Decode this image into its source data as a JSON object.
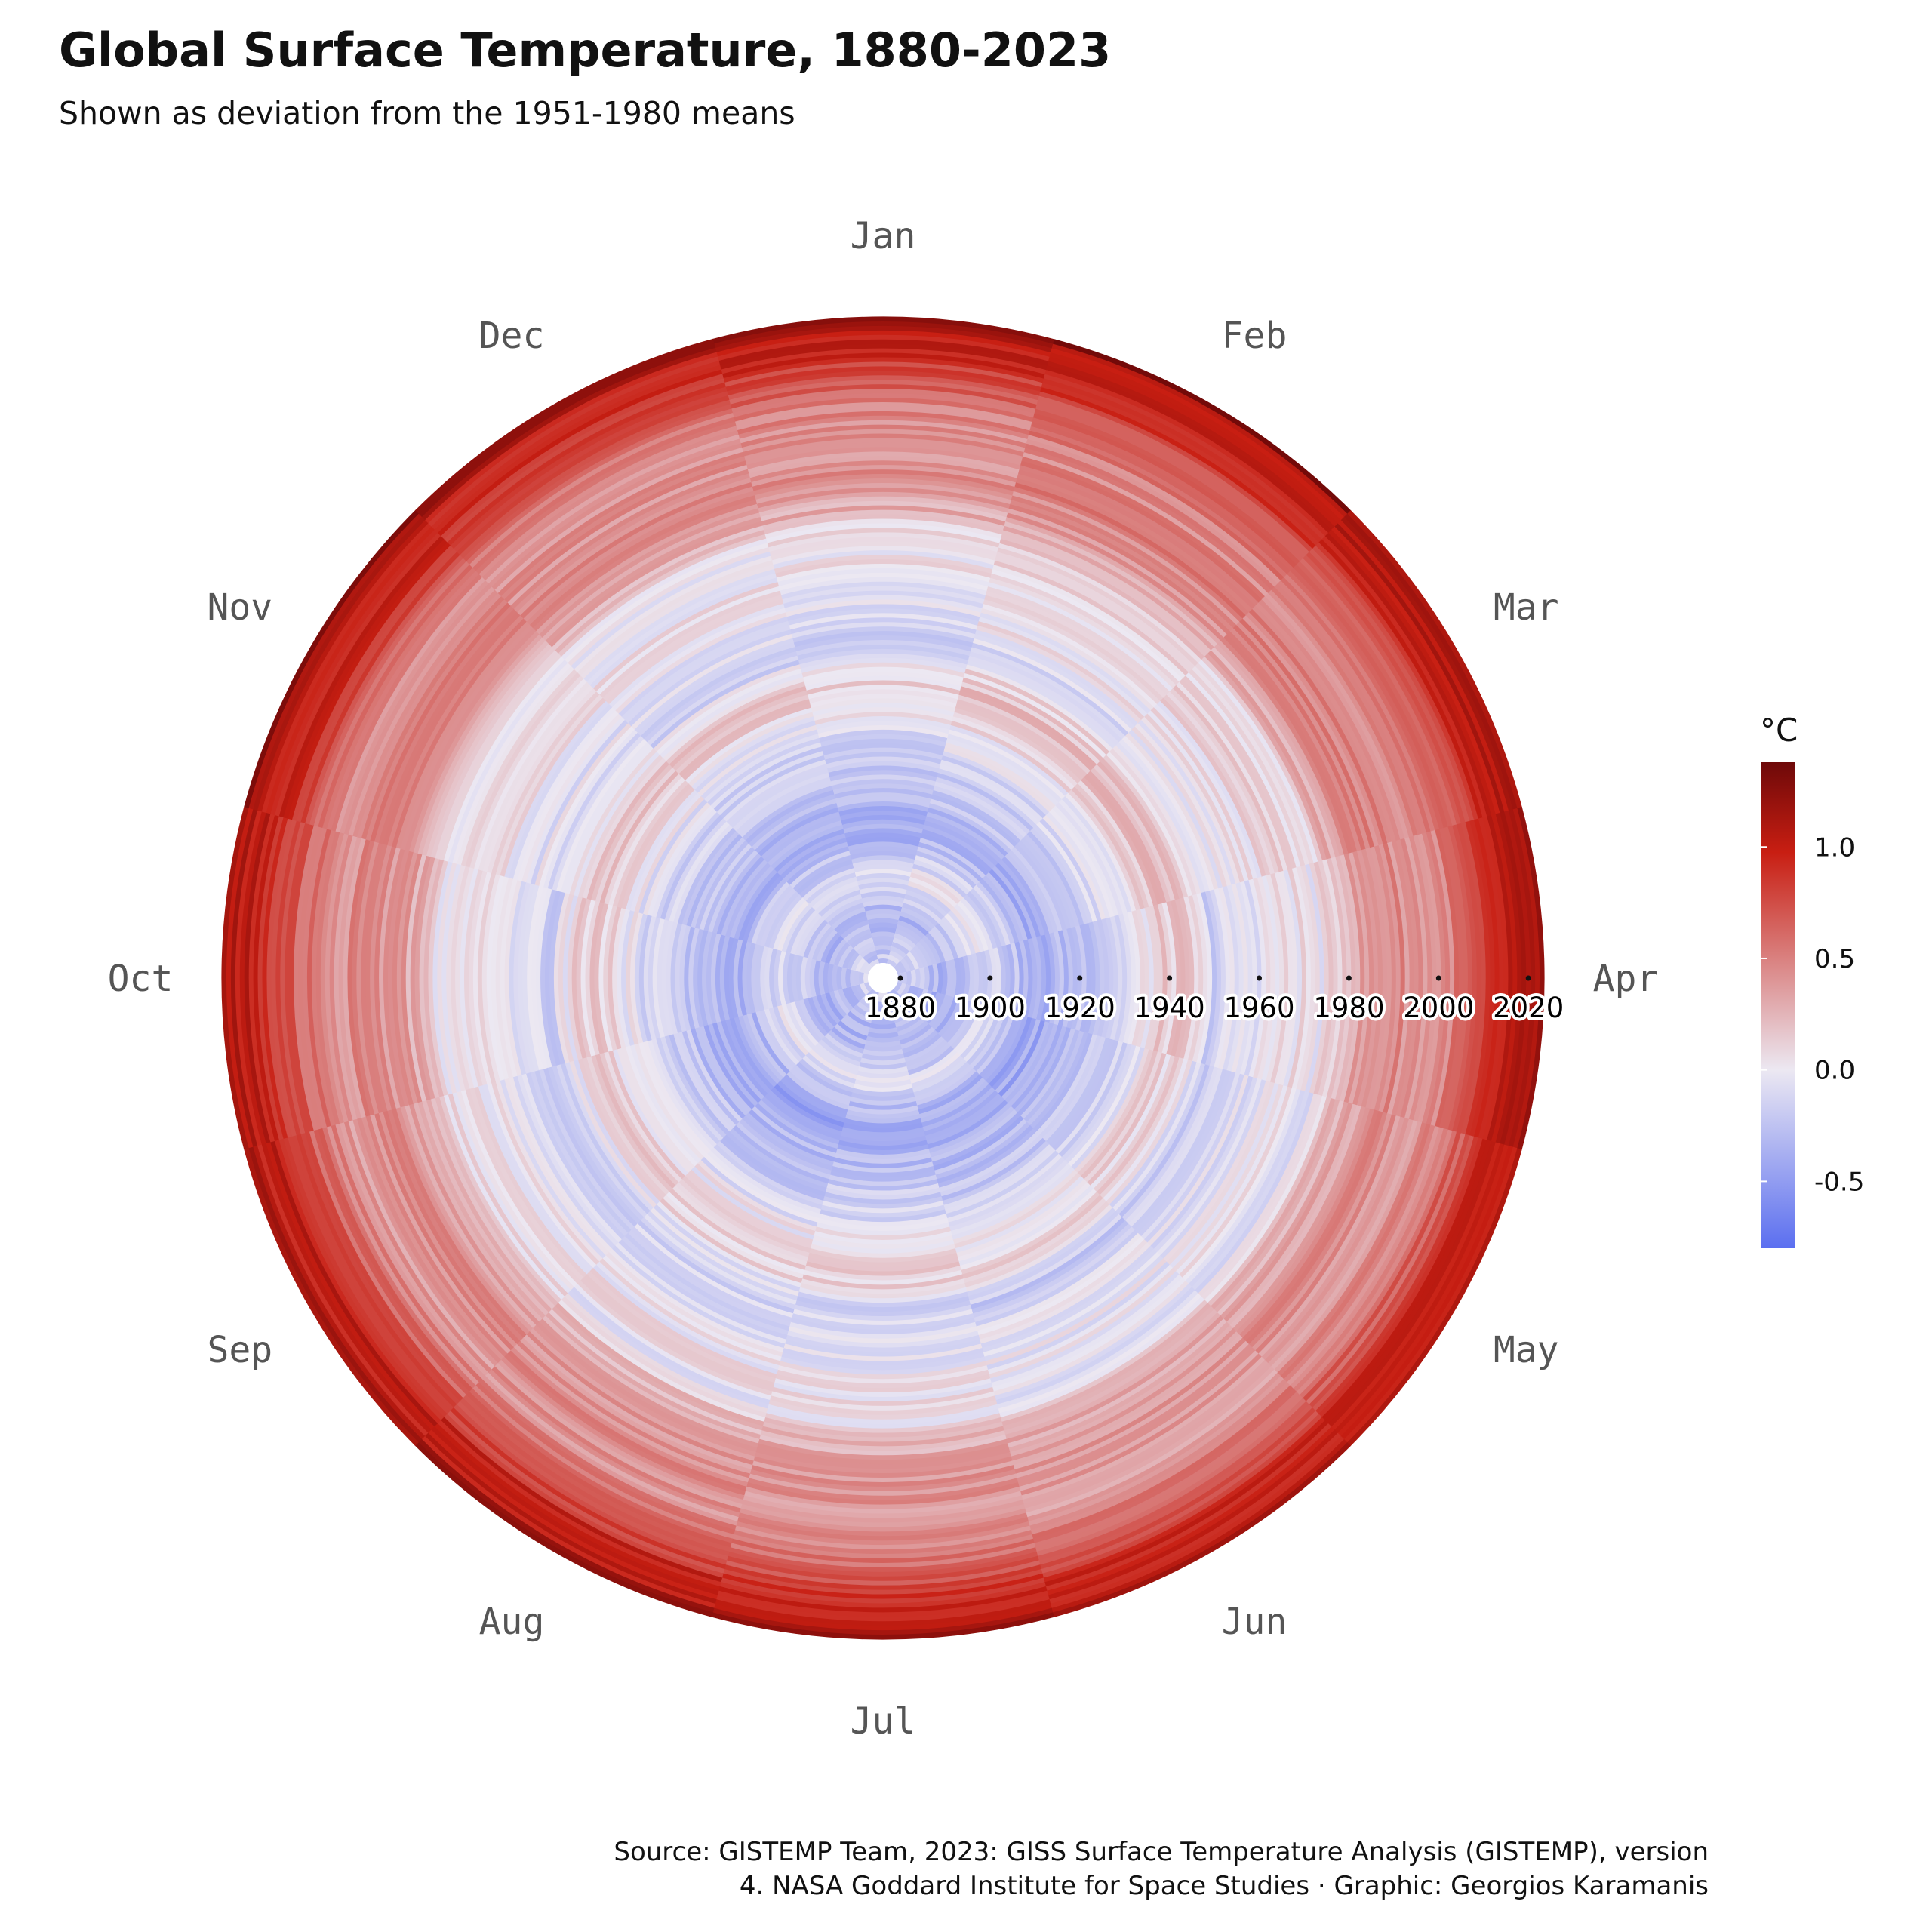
{
  "header": {
    "title": "Global Surface Temperature, 1880-2023",
    "subtitle": "Shown as deviation from the 1951-1980 means"
  },
  "caption": {
    "line1": "Source: GISTEMP Team, 2023: GISS Surface Temperature Analysis (GISTEMP), version",
    "line2": "4. NASA Goddard Institute for Space Studies · Graphic: Georgios Karamanis"
  },
  "chart_data": {
    "type": "heatmap",
    "coordinate_system": "polar (angle = month, radius = year)",
    "title": "Global Surface Temperature, 1880-2023",
    "subtitle": "Shown as deviation from the 1951-1980 means",
    "months": [
      "Jan",
      "Feb",
      "Mar",
      "Apr",
      "May",
      "Jun",
      "Jul",
      "Aug",
      "Sep",
      "Oct",
      "Nov",
      "Dec"
    ],
    "year_ticks": [
      1880,
      1900,
      1920,
      1940,
      1960,
      1980,
      2000,
      2020
    ],
    "year_tick_labels": [
      "1880",
      "1900",
      "1920",
      "1940",
      "1960",
      "1980",
      "2000",
      "2020"
    ],
    "years": [
      1880,
      2023
    ],
    "anchor_anomalies_by_year": [
      {
        "year": 1880,
        "value": -0.17
      },
      {
        "year": 1890,
        "value": -0.36
      },
      {
        "year": 1900,
        "value": -0.08
      },
      {
        "year": 1910,
        "value": -0.43
      },
      {
        "year": 1920,
        "value": -0.27
      },
      {
        "year": 1930,
        "value": -0.13
      },
      {
        "year": 1940,
        "value": 0.13
      },
      {
        "year": 1945,
        "value": 0.12
      },
      {
        "year": 1950,
        "value": -0.17
      },
      {
        "year": 1960,
        "value": -0.03
      },
      {
        "year": 1970,
        "value": 0.03
      },
      {
        "year": 1975,
        "value": -0.02
      },
      {
        "year": 1980,
        "value": 0.26
      },
      {
        "year": 1990,
        "value": 0.45
      },
      {
        "year": 2000,
        "value": 0.4
      },
      {
        "year": 2010,
        "value": 0.72
      },
      {
        "year": 2016,
        "value": 1.01
      },
      {
        "year": 2020,
        "value": 1.01
      },
      {
        "year": 2023,
        "value": 1.17
      }
    ],
    "monthly_offsets": {
      "Jan": 0.0,
      "Feb": 0.06,
      "Mar": 0.07,
      "Apr": 0.02,
      "May": -0.02,
      "Jun": -0.03,
      "Jul": 0.0,
      "Aug": 0.0,
      "Sep": 0.0,
      "Oct": 0.02,
      "Nov": 0.03,
      "Dec": 0.0
    },
    "legend": {
      "title": "°C",
      "placement": "right",
      "range": [
        -0.8,
        1.38
      ],
      "ticks": [
        1.0,
        0.5,
        0.0,
        -0.5
      ],
      "tick_labels": [
        "1.0",
        "0.5",
        "0.0",
        "-0.5"
      ]
    },
    "color_scale": {
      "low": "#5b6ff0",
      "mid": "#ece8f2",
      "high": "#c81e12",
      "max": "#6e0909"
    }
  }
}
